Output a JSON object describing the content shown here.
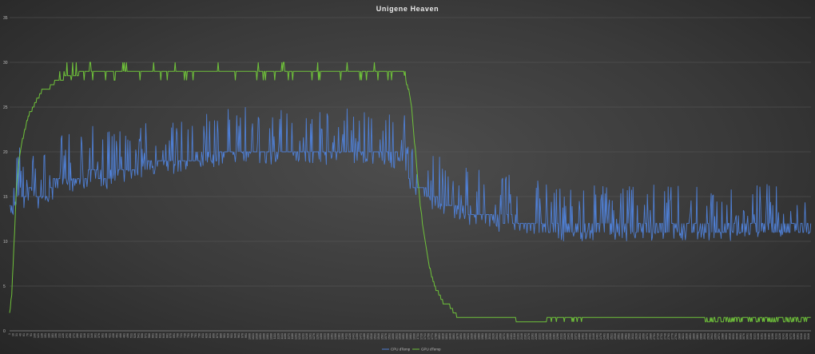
{
  "chart_data": {
    "type": "line",
    "title": "Unigene Heaven",
    "xlabel": "",
    "ylabel": "",
    "ylim": [
      0,
      35
    ],
    "yticks": [
      0,
      5,
      10,
      15,
      20,
      25,
      30,
      35
    ],
    "xlim": [
      1,
      3356
    ],
    "xtick_step": 15,
    "grid": "horizontal",
    "legend": "bottom-center",
    "series": [
      {
        "name": "CPU dTemp",
        "color": "#4f7fd4",
        "x": [
          1,
          20,
          40,
          60,
          80,
          100,
          120,
          140,
          160,
          180,
          200,
          250,
          300,
          350,
          400,
          450,
          500,
          600,
          700,
          800,
          900,
          1000,
          1100,
          1200,
          1300,
          1400,
          1500,
          1600,
          1650,
          1680,
          1700,
          1720,
          1740,
          1760,
          1780,
          1800,
          1850,
          1900,
          1950,
          2000,
          2050,
          2100,
          2150,
          2200,
          2300,
          2400,
          2500,
          2600,
          2700,
          2800,
          2900,
          3000,
          3100,
          3200,
          3300,
          3356
        ],
        "values": [
          14,
          14,
          16,
          15,
          16,
          16,
          15,
          15,
          15,
          16,
          17,
          17,
          17,
          18,
          17,
          18,
          18,
          19,
          19,
          19.5,
          20,
          20,
          20,
          20,
          20,
          20,
          20,
          19.5,
          19.5,
          17,
          16,
          16,
          15.5,
          15,
          15,
          14.5,
          14,
          13.5,
          13,
          13,
          12.5,
          12.5,
          12,
          12,
          11.5,
          11.5,
          11.5,
          11.5,
          11.5,
          11.5,
          11.5,
          11.5,
          11.5,
          11.5,
          11.5,
          11.5
        ],
        "noise": 4
      },
      {
        "name": "GPU dTemp",
        "color": "#6fc23a",
        "x": [
          1,
          10,
          20,
          30,
          40,
          60,
          80,
          100,
          120,
          140,
          160,
          180,
          200,
          220,
          240,
          260,
          280,
          300,
          350,
          400,
          500,
          600,
          700,
          800,
          900,
          1000,
          1100,
          1200,
          1300,
          1400,
          1500,
          1600,
          1650,
          1680,
          1700,
          1720,
          1740,
          1760,
          1780,
          1800,
          1820,
          1840,
          1860,
          1880,
          1900,
          1950,
          2000,
          2050,
          2100,
          2150,
          2200,
          2300,
          2400,
          2500,
          2600,
          2700,
          2800,
          2900,
          3000,
          3100,
          3200,
          3300,
          3356
        ],
        "values": [
          2,
          4,
          10,
          16,
          19,
          22,
          24,
          25,
          26,
          27,
          27,
          27.5,
          28,
          28,
          28.5,
          28.5,
          28.5,
          29,
          29,
          29,
          29,
          29,
          29,
          29,
          29,
          29,
          29,
          29,
          29,
          29,
          29,
          29,
          29,
          26,
          20,
          14,
          10,
          7,
          5,
          4,
          3,
          3,
          2,
          1.5,
          1.5,
          1.5,
          1.5,
          1.5,
          1.5,
          1.5,
          1.5,
          1.5,
          1.5,
          1.5,
          1.5,
          1.5,
          1.5,
          1.5,
          1.5,
          1.5,
          1.5,
          1.5,
          1.5
        ],
        "noise": 1
      }
    ]
  }
}
